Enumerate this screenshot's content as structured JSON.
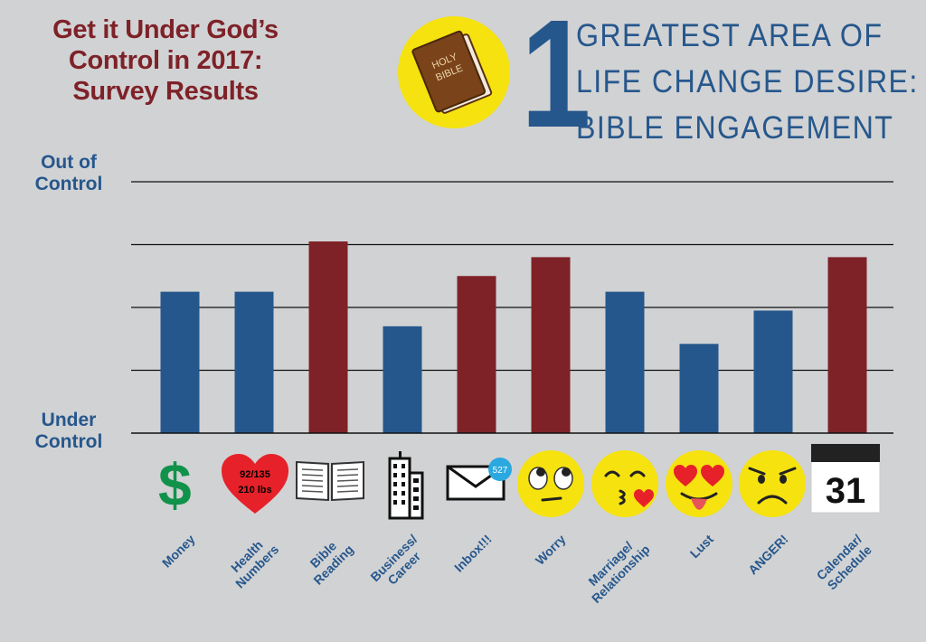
{
  "title": {
    "line1": "Get it Under God’s",
    "line2": "Control in 2017:",
    "line3": "Survey Results"
  },
  "bible_cover": {
    "line1": "HOLY",
    "line2": "BIBLE"
  },
  "headline": {
    "number": "1",
    "line1": "GREATEST AREA OF",
    "line2": "LIFE CHANGE DESIRE:",
    "line3": "BIBLE ENGAGEMENT"
  },
  "axis": {
    "top_label": "Out of Control",
    "bottom_label": "Under Control"
  },
  "icons": {
    "money_symbol": "$",
    "health_line1": "92/135",
    "health_line2": "210 lbs",
    "inbox_badge": "527",
    "calendar_day": "31"
  },
  "colors": {
    "blue": "#26578c",
    "red": "#7e2228",
    "yellow": "#f5e20f",
    "green": "#11924a"
  },
  "chart_data": {
    "type": "bar",
    "categories": [
      "Money",
      "Health Numbers",
      "Bible Reading",
      "Business/ Career",
      "Inbox!!!",
      "Worry",
      "Marriage/ Relationship",
      "Lust",
      "ANGER!",
      "Calendar/ Schedule"
    ],
    "values": [
      2.25,
      2.25,
      3.05,
      1.7,
      2.5,
      2.8,
      2.25,
      1.42,
      1.95,
      2.8
    ],
    "highlight": [
      false,
      false,
      true,
      false,
      true,
      true,
      false,
      false,
      false,
      true
    ],
    "ylim": [
      0,
      4
    ],
    "gridlines": [
      1,
      2,
      3,
      4
    ],
    "ylabel_top": "Out of Control",
    "ylabel_bottom": "Under Control"
  }
}
